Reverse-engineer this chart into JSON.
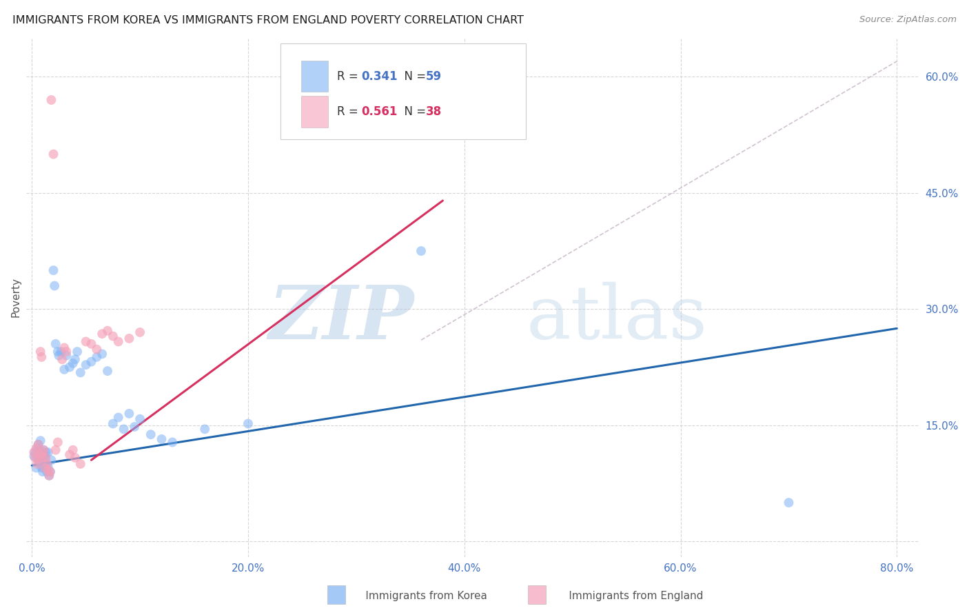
{
  "title": "IMMIGRANTS FROM KOREA VS IMMIGRANTS FROM ENGLAND POVERTY CORRELATION CHART",
  "source": "Source: ZipAtlas.com",
  "ylabel": "Poverty",
  "xlim": [
    -0.005,
    0.82
  ],
  "ylim": [
    -0.02,
    0.65
  ],
  "korea_R": 0.341,
  "korea_N": 59,
  "england_R": 0.561,
  "england_N": 38,
  "korea_color": "#7EB3F5",
  "england_color": "#F4A0B8",
  "korea_line_color": "#2166AC",
  "england_line_color": "#D63060",
  "diagonal_color": "#C8B8C8",
  "background_color": "#FFFFFF",
  "watermark_zip": "ZIP",
  "watermark_atlas": "atlas",
  "xtick_vals": [
    0.0,
    0.2,
    0.4,
    0.6,
    0.8
  ],
  "xtick_labels": [
    "0.0%",
    "20.0%",
    "40.0%",
    "60.0%",
    "80.0%"
  ],
  "ytick_vals": [
    0.0,
    0.15,
    0.3,
    0.45,
    0.6
  ],
  "ytick_labels": [
    "",
    "15.0%",
    "30.0%",
    "45.0%",
    "60.0%"
  ],
  "korea_line_x": [
    0.0,
    0.8
  ],
  "korea_line_y": [
    0.098,
    0.275
  ],
  "england_line_x": [
    0.055,
    0.38
  ],
  "england_line_y": [
    0.105,
    0.44
  ],
  "diagonal_line_x": [
    0.36,
    0.8
  ],
  "diagonal_line_y": [
    0.26,
    0.62
  ],
  "korea_scatter_x": [
    0.002,
    0.003,
    0.004,
    0.005,
    0.005,
    0.006,
    0.006,
    0.007,
    0.007,
    0.008,
    0.008,
    0.009,
    0.009,
    0.01,
    0.01,
    0.01,
    0.011,
    0.011,
    0.012,
    0.012,
    0.013,
    0.013,
    0.014,
    0.015,
    0.015,
    0.016,
    0.017,
    0.018,
    0.02,
    0.021,
    0.022,
    0.024,
    0.025,
    0.027,
    0.03,
    0.032,
    0.035,
    0.038,
    0.04,
    0.042,
    0.045,
    0.05,
    0.055,
    0.06,
    0.065,
    0.07,
    0.075,
    0.08,
    0.085,
    0.09,
    0.095,
    0.1,
    0.11,
    0.12,
    0.13,
    0.16,
    0.2,
    0.36,
    0.7
  ],
  "korea_scatter_y": [
    0.11,
    0.115,
    0.095,
    0.12,
    0.108,
    0.125,
    0.105,
    0.112,
    0.118,
    0.1,
    0.13,
    0.095,
    0.108,
    0.115,
    0.09,
    0.105,
    0.112,
    0.118,
    0.095,
    0.108,
    0.1,
    0.115,
    0.09,
    0.096,
    0.115,
    0.085,
    0.09,
    0.105,
    0.35,
    0.33,
    0.255,
    0.245,
    0.24,
    0.245,
    0.222,
    0.24,
    0.225,
    0.23,
    0.235,
    0.245,
    0.218,
    0.228,
    0.232,
    0.238,
    0.242,
    0.22,
    0.152,
    0.16,
    0.145,
    0.165,
    0.148,
    0.158,
    0.138,
    0.132,
    0.128,
    0.145,
    0.152,
    0.375,
    0.05
  ],
  "england_scatter_x": [
    0.002,
    0.003,
    0.004,
    0.005,
    0.006,
    0.006,
    0.007,
    0.008,
    0.009,
    0.01,
    0.01,
    0.011,
    0.012,
    0.013,
    0.014,
    0.015,
    0.016,
    0.017,
    0.018,
    0.02,
    0.022,
    0.024,
    0.028,
    0.03,
    0.032,
    0.035,
    0.038,
    0.04,
    0.045,
    0.05,
    0.055,
    0.06,
    0.065,
    0.07,
    0.075,
    0.08,
    0.09,
    0.1
  ],
  "england_scatter_y": [
    0.115,
    0.108,
    0.12,
    0.1,
    0.125,
    0.105,
    0.112,
    0.245,
    0.238,
    0.115,
    0.108,
    0.118,
    0.095,
    0.108,
    0.1,
    0.092,
    0.085,
    0.09,
    0.57,
    0.5,
    0.118,
    0.128,
    0.235,
    0.25,
    0.245,
    0.112,
    0.118,
    0.108,
    0.1,
    0.258,
    0.255,
    0.248,
    0.268,
    0.272,
    0.265,
    0.258,
    0.262,
    0.27
  ]
}
